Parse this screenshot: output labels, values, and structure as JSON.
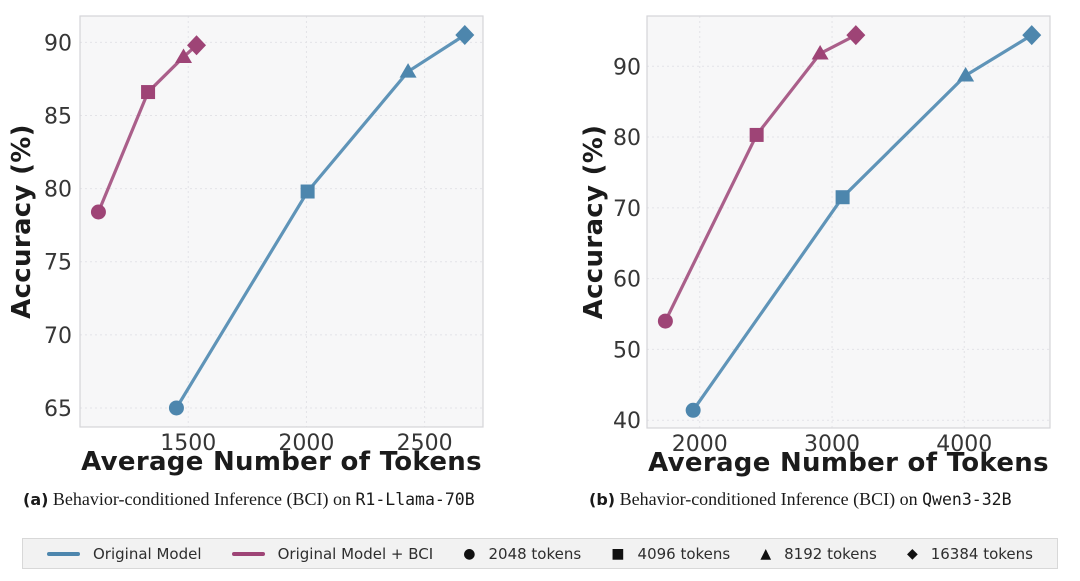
{
  "figure": {
    "captions": {
      "a": {
        "label": "(a)",
        "text": "Behavior-conditioned Inference (BCI) on",
        "model": "R1-Llama-70B"
      },
      "b": {
        "label": "(b)",
        "text": "Behavior-conditioned Inference (BCI) on",
        "model": "Qwen3-32B"
      }
    },
    "legend": {
      "series": [
        {
          "label": "Original Model",
          "color": "#4d86ad"
        },
        {
          "label": "Original Model + BCI",
          "color": "#9e4476"
        }
      ],
      "markers": [
        {
          "label": "2048 tokens",
          "glyph": "●",
          "shape": "circle"
        },
        {
          "label": "4096 tokens",
          "glyph": "■",
          "shape": "square"
        },
        {
          "label": "8192 tokens",
          "glyph": "▲",
          "shape": "triangle"
        },
        {
          "label": "16384 tokens",
          "glyph": "◆",
          "shape": "diamond"
        }
      ]
    },
    "colors": {
      "blue_line": "#5f94b8",
      "blue_marker": "#4d86ad",
      "pink_line": "#aa5f8a",
      "pink_marker": "#9e4476",
      "plot_bg": "#f7f7f8",
      "grid": "#e3e3e7",
      "legend_bg": "#f2f2f2"
    }
  },
  "chart_data": [
    {
      "id": "a",
      "type": "line",
      "title": "",
      "xlabel": "Average Number of Tokens",
      "ylabel": "Accuracy (%)",
      "xlim": [
        1042,
        2747
      ],
      "ylim": [
        63.7,
        91.8
      ],
      "xticks": [
        1500,
        2000,
        2500
      ],
      "yticks": [
        65,
        70,
        75,
        80,
        85,
        90
      ],
      "grid": true,
      "legend_position": "bottom-shared",
      "marker_tokens": [
        2048,
        4096,
        8192,
        16384
      ],
      "marker_shapes": [
        "circle",
        "square",
        "triangle",
        "diamond"
      ],
      "series": [
        {
          "name": "Original Model",
          "line_color": "#5f94b8",
          "marker_color": "#4d86ad",
          "x": [
            1450,
            2005,
            2430,
            2670
          ],
          "y": [
            65.0,
            79.8,
            88.0,
            90.5
          ]
        },
        {
          "name": "Original Model + BCI",
          "line_color": "#aa5f8a",
          "marker_color": "#9e4476",
          "x": [
            1120,
            1330,
            1480,
            1535
          ],
          "y": [
            78.4,
            86.6,
            89.0,
            89.8
          ]
        }
      ]
    },
    {
      "id": "b",
      "type": "line",
      "title": "",
      "xlabel": "Average Number of Tokens",
      "ylabel": "Accuracy (%)",
      "xlim": [
        1601,
        4648
      ],
      "ylim": [
        38.9,
        97.1
      ],
      "xticks": [
        2000,
        3000,
        4000
      ],
      "yticks": [
        40,
        50,
        60,
        70,
        80,
        90
      ],
      "grid": true,
      "legend_position": "bottom-shared",
      "marker_tokens": [
        2048,
        4096,
        8192,
        16384
      ],
      "marker_shapes": [
        "circle",
        "square",
        "triangle",
        "diamond"
      ],
      "series": [
        {
          "name": "Original Model",
          "line_color": "#5f94b8",
          "marker_color": "#4d86ad",
          "x": [
            1950,
            3080,
            4010,
            4510
          ],
          "y": [
            41.4,
            71.5,
            88.7,
            94.4
          ]
        },
        {
          "name": "Original Model + BCI",
          "line_color": "#aa5f8a",
          "marker_color": "#9e4476",
          "x": [
            1740,
            2430,
            2910,
            3180
          ],
          "y": [
            54.0,
            80.3,
            91.8,
            94.4
          ]
        }
      ]
    }
  ]
}
